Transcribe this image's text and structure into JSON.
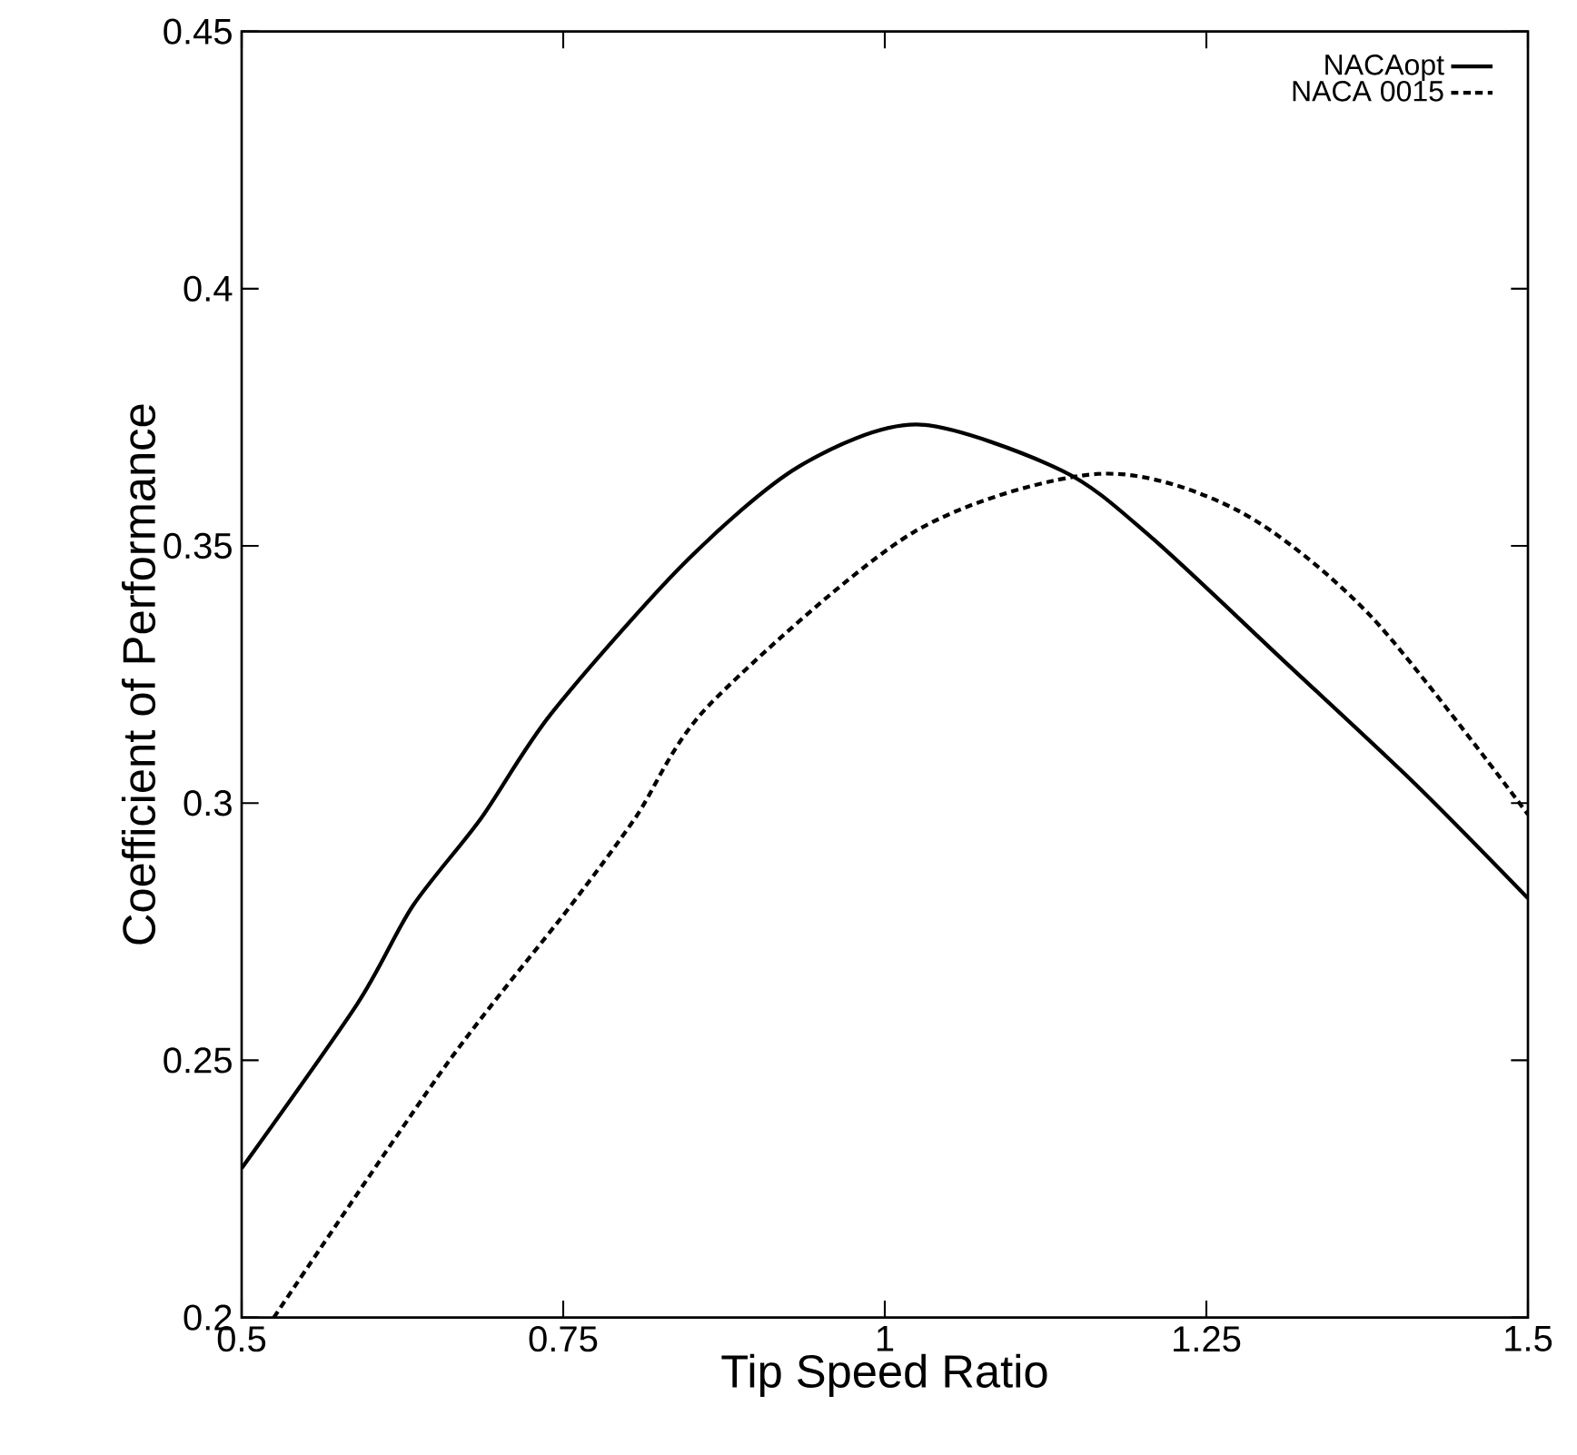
{
  "chart_data": {
    "type": "line",
    "xlabel": "Tip Speed Ratio",
    "ylabel": "Coefficient of Performance",
    "xlim": [
      0.5,
      1.5
    ],
    "ylim": [
      0.2,
      0.45
    ],
    "xticks": [
      0.5,
      0.75,
      1,
      1.25,
      1.5
    ],
    "yticks": [
      0.2,
      0.25,
      0.3,
      0.35,
      0.4,
      0.45
    ],
    "legend": "top right",
    "marker": "none",
    "grid": false,
    "series": [
      {
        "name": "NACAopt",
        "color": "#000000",
        "line_style": "solid",
        "x": [
          0.5,
          0.59,
          0.633,
          0.686,
          0.741,
          0.844,
          0.933,
          1.025,
          1.138,
          1.207,
          1.31,
          1.412,
          1.5
        ],
        "values": [
          0.229,
          0.261,
          0.28,
          0.297,
          0.3175,
          0.3466,
          0.3654,
          0.3736,
          0.3646,
          0.3517,
          0.3277,
          0.3038,
          0.2815
        ]
      },
      {
        "name": "NACA 0015",
        "color": "#000000",
        "line_style": "dashed",
        "x": [
          0.525,
          0.659,
          0.755,
          0.806,
          0.864,
          1.022,
          1.166,
          1.275,
          1.378,
          1.5
        ],
        "values": [
          0.2,
          0.2491,
          0.2798,
          0.2971,
          0.3192,
          0.3526,
          0.364,
          0.3568,
          0.3363,
          0.2978
        ]
      }
    ]
  }
}
